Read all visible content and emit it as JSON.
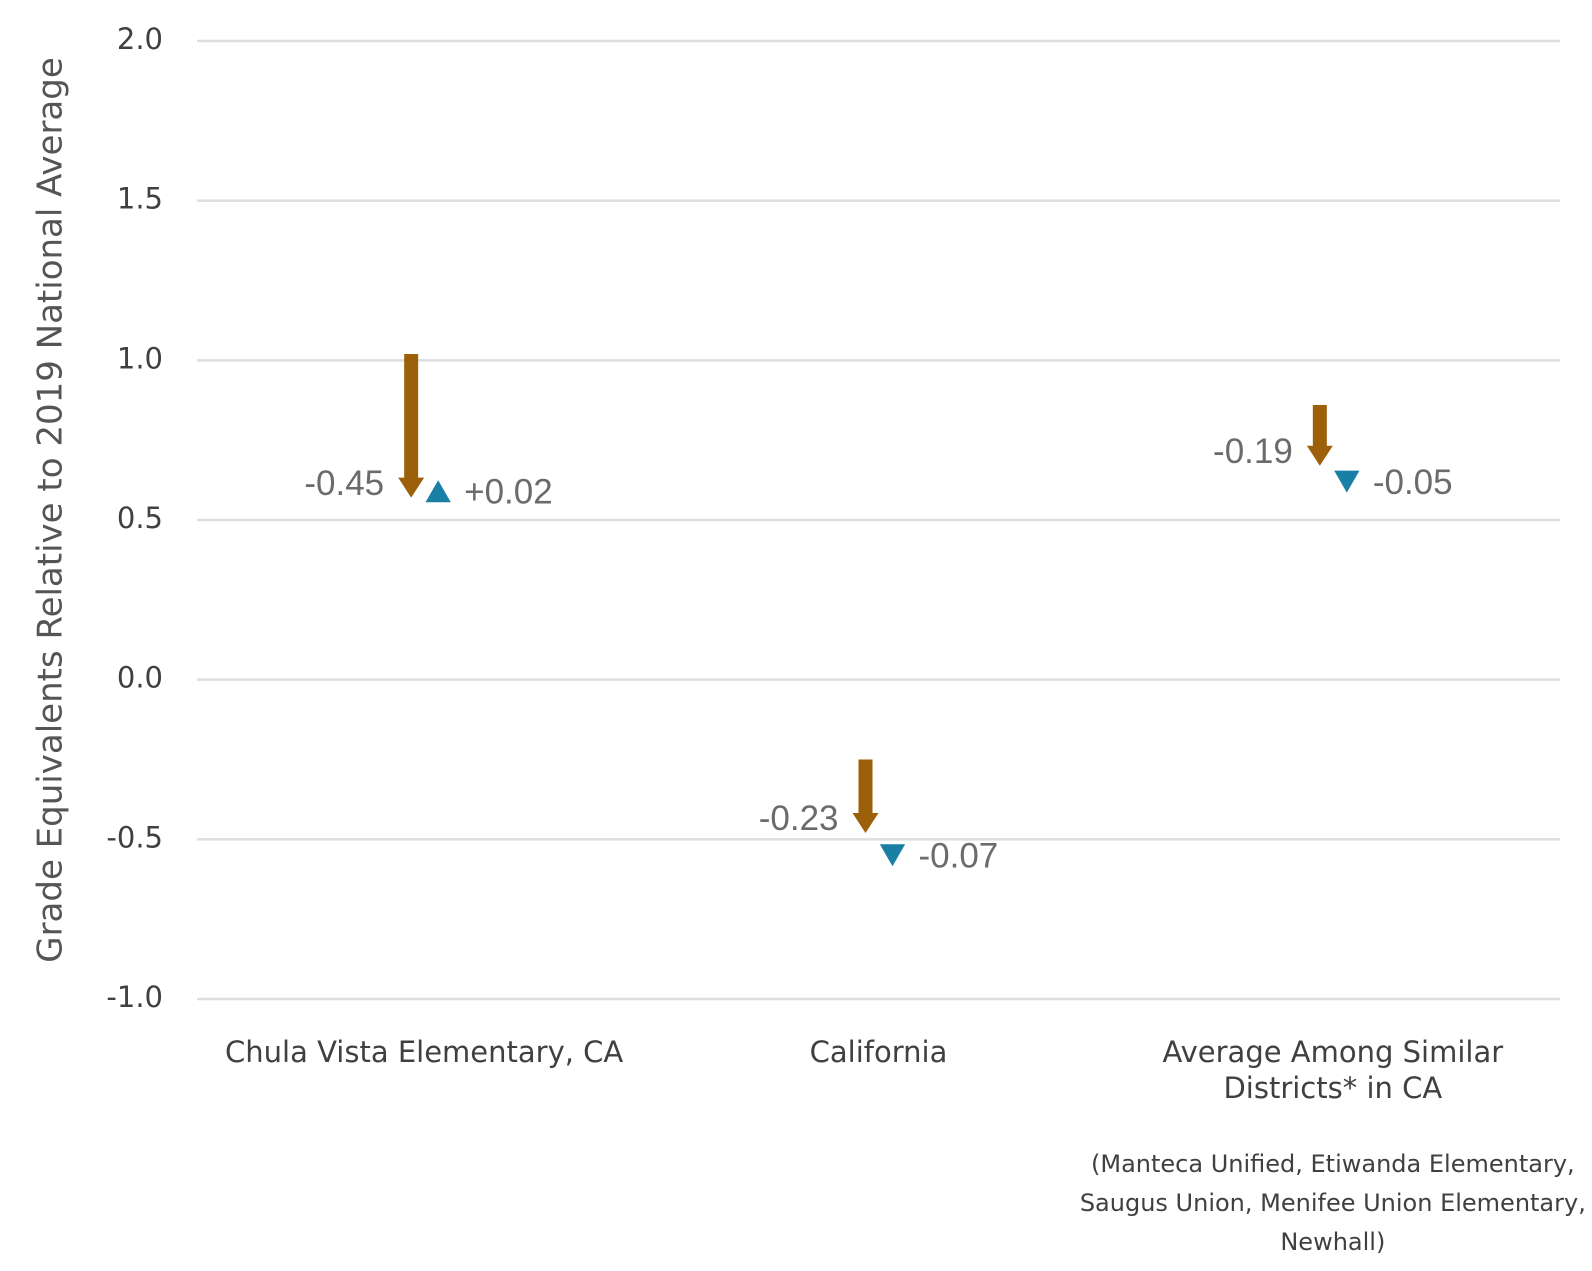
{
  "chart_data": {
    "type": "arrow-change",
    "title": "",
    "xlabel": "",
    "ylabel": "Grade Equivalents Relative to 2019 National Average",
    "ylim": [
      -1.0,
      2.0
    ],
    "yticks": [
      "2.0",
      "1.5",
      "1.0",
      "0.5",
      "0.0",
      "-0.5",
      "-1.0"
    ],
    "ytick_values": [
      2.0,
      1.5,
      1.0,
      0.5,
      0.0,
      -0.5,
      -1.0
    ],
    "grid": true,
    "categories": [
      {
        "label_lines": [
          "Chula Vista Elementary, CA"
        ],
        "y_2019": 1.02,
        "y_2022": 0.57,
        "y_2023": 0.59,
        "change_1": "-0.45",
        "change_2": "+0.02",
        "direction_2": "up"
      },
      {
        "label_lines": [
          "California"
        ],
        "y_2019": -0.25,
        "y_2022": -0.48,
        "y_2023": -0.55,
        "change_1": "-0.23",
        "change_2": "-0.07",
        "direction_2": "down"
      },
      {
        "label_lines": [
          "Average Among Similar",
          "Districts* in CA"
        ],
        "y_2019": 0.86,
        "y_2022": 0.67,
        "y_2023": 0.62,
        "change_1": "-0.19",
        "change_2": "-0.05",
        "direction_2": "down"
      }
    ],
    "footnote_lines": [
      "(Manteca Unified, Etiwanda Elementary,",
      "Saugus Union, Menifee Union Elementary,",
      "Newhall)"
    ],
    "colors": {
      "arrow": "#9c5f0a",
      "marker": "#1a7fa5",
      "grid": "#dedede"
    }
  }
}
